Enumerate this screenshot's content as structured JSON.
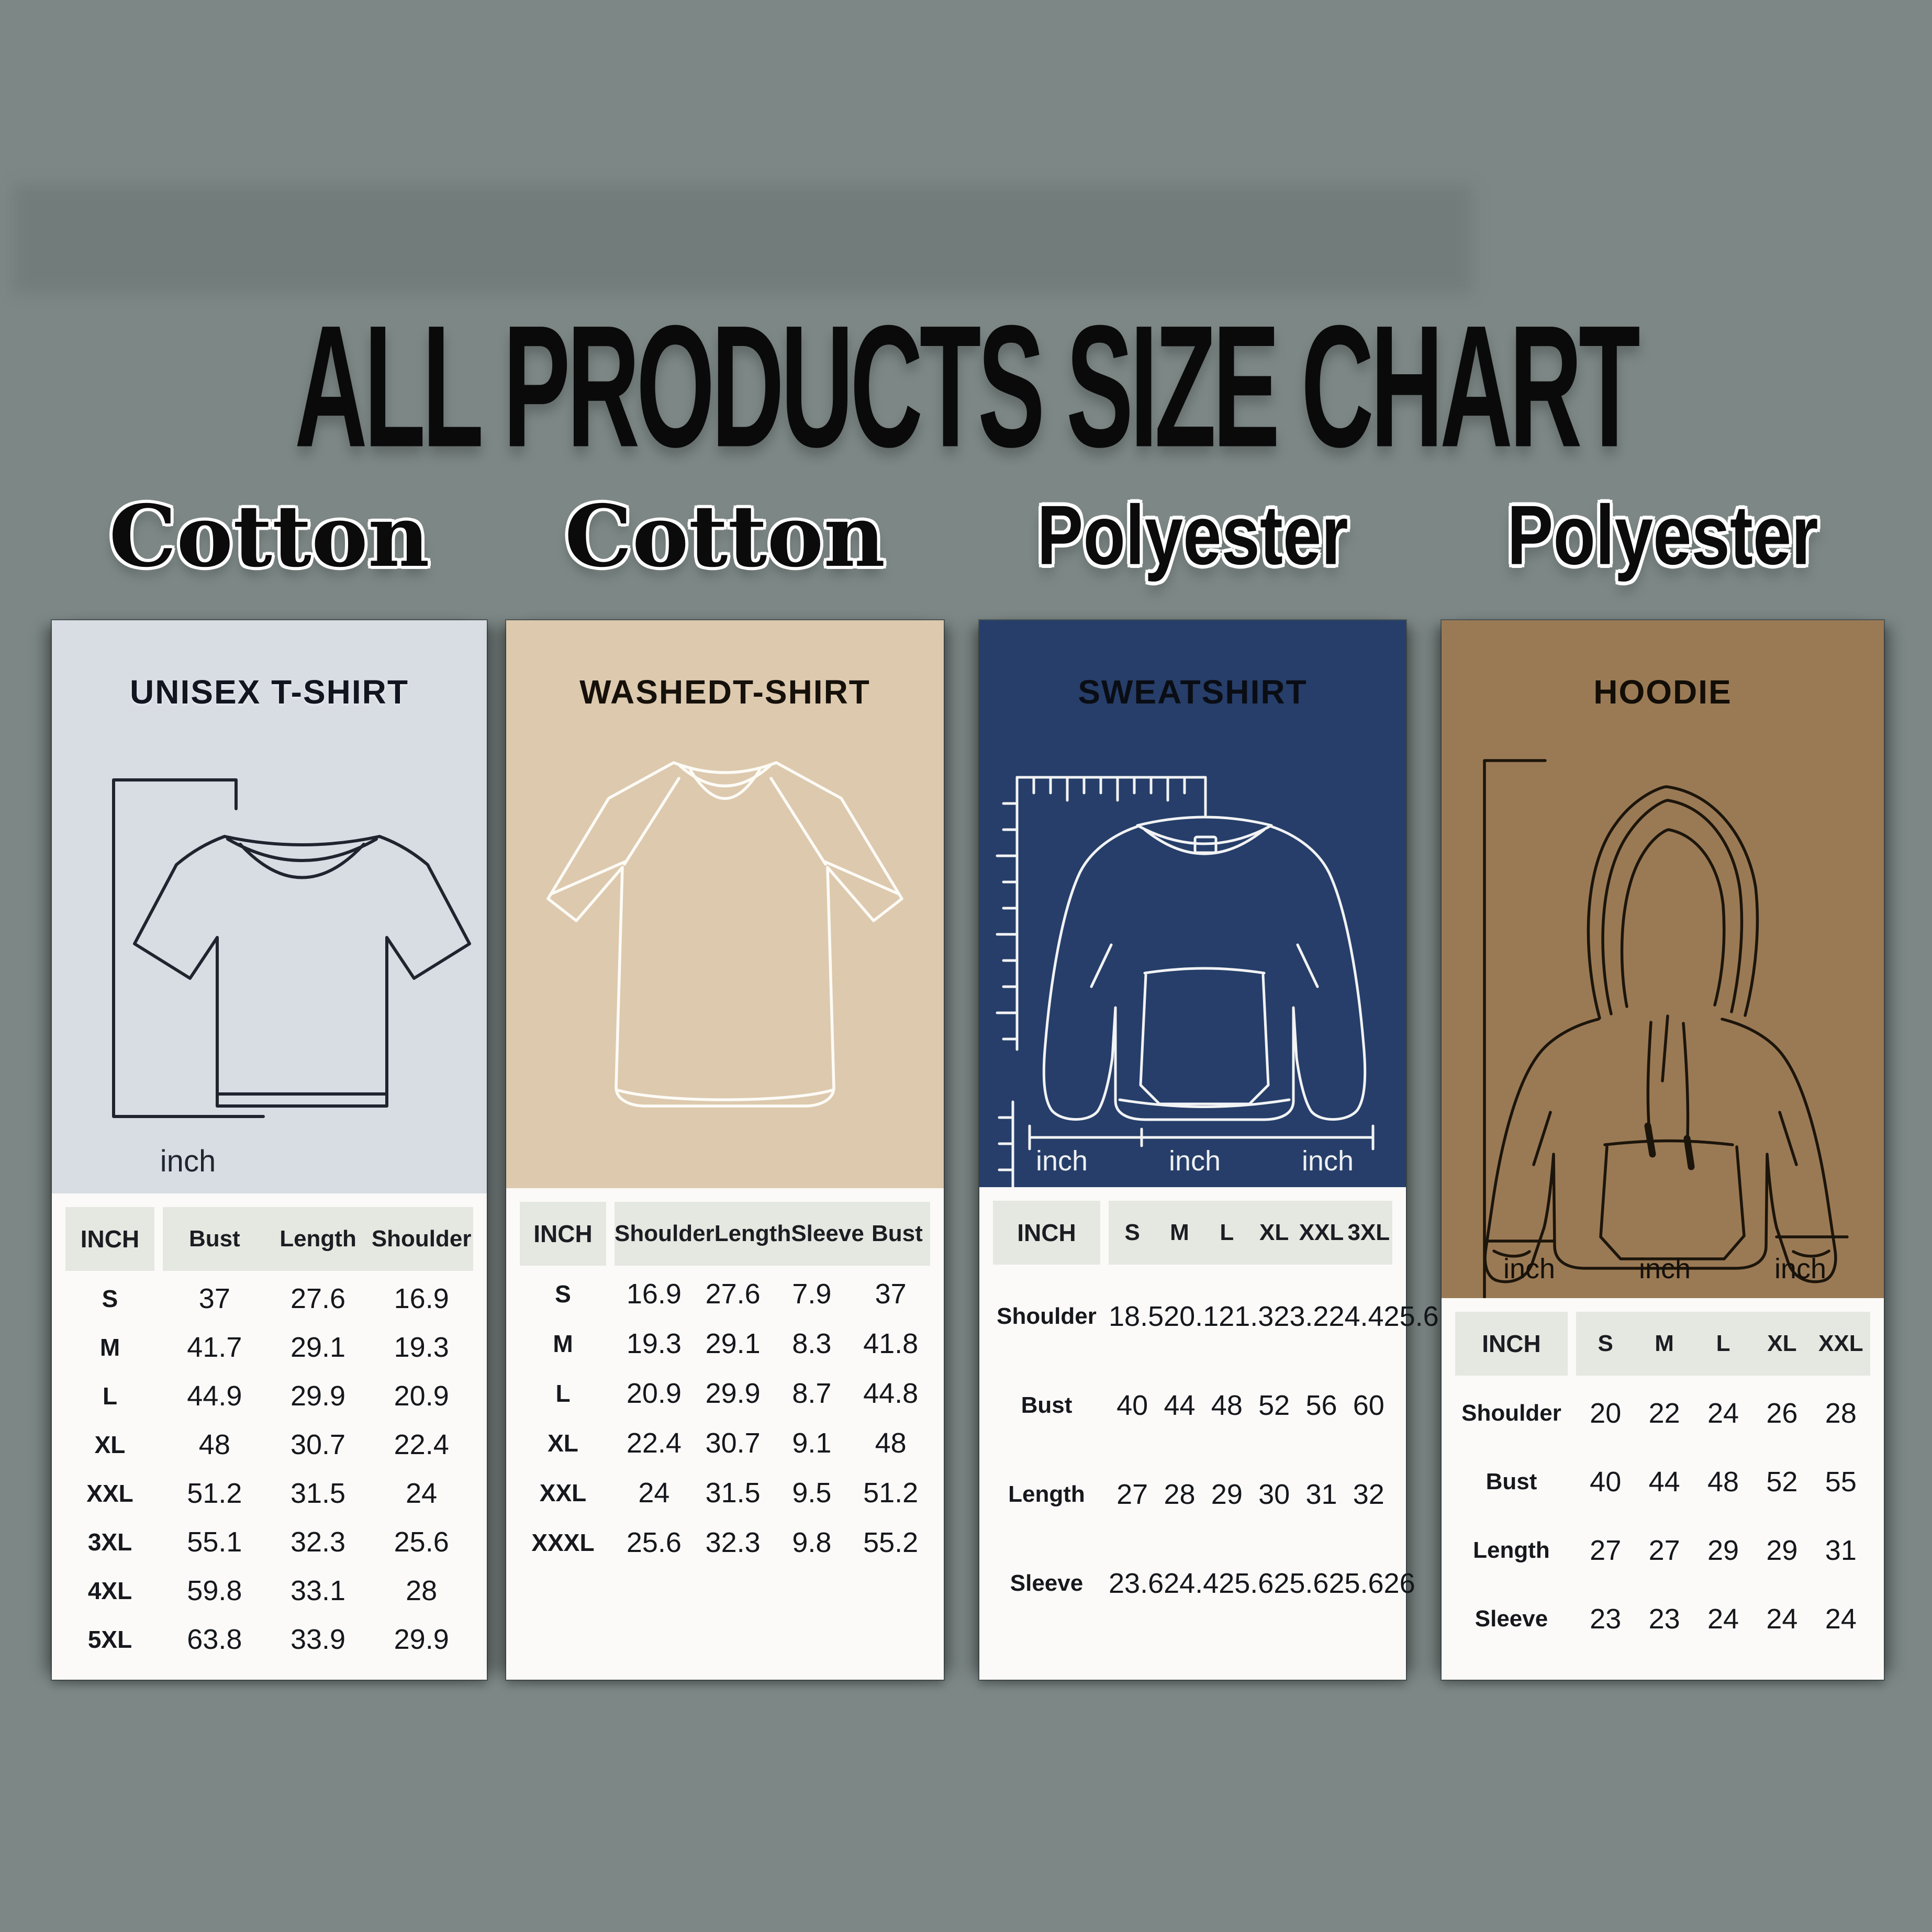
{
  "title": "ALL PRODUCTS SIZE CHART",
  "colors": {
    "background": "#7d8886",
    "panel_tshirt_bg": "#d8dce3",
    "panel_washed_bg": "#ddc9ae",
    "panel_sweatshirt_bg": "#263e69",
    "panel_hoodie_bg": "#9a7a55",
    "table_bg": "#fbfaf8",
    "header_cell_bg": "#e5e7e1",
    "title_text": "#0a0a0a"
  },
  "panels": [
    {
      "material": "Cotton",
      "product": "UNISEX T-SHIRT",
      "unit": "inch",
      "inch_labels": [
        "inch"
      ],
      "icon": "tshirt-line-drawing",
      "table": {
        "header": [
          "INCH",
          "Bust",
          "Length",
          "Shoulder"
        ],
        "rows": [
          [
            "S",
            "37",
            "27.6",
            "16.9"
          ],
          [
            "M",
            "41.7",
            "29.1",
            "19.3"
          ],
          [
            "L",
            "44.9",
            "29.9",
            "20.9"
          ],
          [
            "XL",
            "48",
            "30.7",
            "22.4"
          ],
          [
            "XXL",
            "51.2",
            "31.5",
            "24"
          ],
          [
            "3XL",
            "55.1",
            "32.3",
            "25.6"
          ],
          [
            "4XL",
            "59.8",
            "33.1",
            "28"
          ],
          [
            "5XL",
            "63.8",
            "33.9",
            "29.9"
          ]
        ]
      }
    },
    {
      "material": "Cotton",
      "product": "WASHEDT-SHIRT",
      "unit": "inch",
      "inch_labels": [],
      "icon": "oversized-tshirt-line-drawing",
      "table": {
        "header": [
          "INCH",
          "Shoulder",
          "Length",
          "Sleeve",
          "Bust"
        ],
        "rows": [
          [
            "S",
            "16.9",
            "27.6",
            "7.9",
            "37"
          ],
          [
            "M",
            "19.3",
            "29.1",
            "8.3",
            "41.8"
          ],
          [
            "L",
            "20.9",
            "29.9",
            "8.7",
            "44.8"
          ],
          [
            "XL",
            "22.4",
            "30.7",
            "9.1",
            "48"
          ],
          [
            "XXL",
            "24",
            "31.5",
            "9.5",
            "51.2"
          ],
          [
            "XXXL",
            "25.6",
            "32.3",
            "9.8",
            "55.2"
          ]
        ]
      }
    },
    {
      "material": "Polyester",
      "product": "SWEATSHIRT",
      "unit": "inch",
      "inch_labels": [
        "inch",
        "inch",
        "inch"
      ],
      "icon": "sweatshirt-line-drawing",
      "table": {
        "header": [
          "INCH",
          "S",
          "M",
          "L",
          "XL",
          "XXL",
          "3XL"
        ],
        "rows": [
          [
            "Shoulder",
            "18.5",
            "20.1",
            "21.3",
            "23.2",
            "24.4",
            "25.6"
          ],
          [
            "Bust",
            "40",
            "44",
            "48",
            "52",
            "56",
            "60"
          ],
          [
            "Length",
            "27",
            "28",
            "29",
            "30",
            "31",
            "32"
          ],
          [
            "Sleeve",
            "23.6",
            "24.4",
            "25.6",
            "25.6",
            "25.6",
            "26"
          ]
        ]
      }
    },
    {
      "material": "Polyester",
      "product": "HOODIE",
      "unit": "inch",
      "inch_labels": [
        "inch",
        "inch",
        "inch"
      ],
      "icon": "hoodie-line-drawing",
      "table": {
        "header": [
          "INCH",
          "S",
          "M",
          "L",
          "XL",
          "XXL"
        ],
        "rows": [
          [
            "Shoulder",
            "20",
            "22",
            "24",
            "26",
            "28"
          ],
          [
            "Bust",
            "40",
            "44",
            "48",
            "52",
            "55"
          ],
          [
            "Length",
            "27",
            "27",
            "29",
            "29",
            "31"
          ],
          [
            "Sleeve",
            "23",
            "23",
            "24",
            "24",
            "24"
          ]
        ]
      }
    }
  ]
}
